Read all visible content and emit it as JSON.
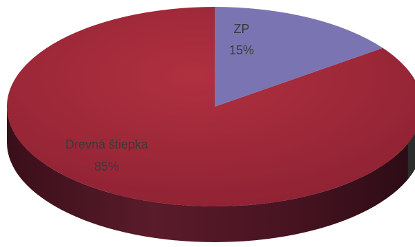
{
  "chart_data": {
    "type": "pie",
    "style": "3d",
    "slices": [
      {
        "label": "ZP",
        "value": 15,
        "value_label": "15%",
        "color": "#7b74b3"
      },
      {
        "label": "Drevná štiepka",
        "value": 85,
        "value_label": "85%",
        "color": "#a42a3a"
      }
    ]
  },
  "colors": {
    "large_top": "#a42a3a",
    "large_side": "#4a1a26",
    "small_top": "#7b74b3",
    "small_side": "#2e2e2e"
  }
}
